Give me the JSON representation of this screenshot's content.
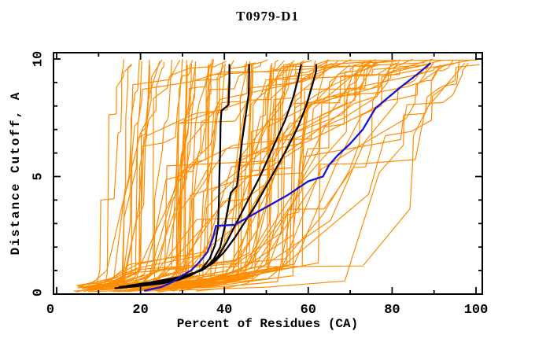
{
  "window": {
    "background": "#ffffff"
  },
  "chart_data": {
    "type": "line",
    "title": "T0979-D1",
    "xlabel": "Percent of Residues (CA)",
    "ylabel": "Distance Cutoff, A",
    "xlim": [
      0,
      100
    ],
    "ylim": [
      0,
      10
    ],
    "x_major_ticks": [
      0,
      20,
      40,
      60,
      80,
      100
    ],
    "x_minor_ticks": [
      10,
      30,
      50,
      70,
      90
    ],
    "y_major_ticks": [
      0,
      5,
      10
    ],
    "y_minor_ticks": [
      1,
      2,
      3,
      4,
      6,
      7,
      8,
      9
    ],
    "grid": false,
    "legend": "none",
    "colors": {
      "frame": "#000000",
      "text": "#000000",
      "ensemble": "#ff8c00",
      "models": "#000000",
      "reference": "#1515d0"
    },
    "series": [
      {
        "name": "model-black-1",
        "color_key": "models",
        "width": 2.2,
        "points": [
          [
            14,
            0.25
          ],
          [
            20,
            0.35
          ],
          [
            25,
            0.45
          ],
          [
            29,
            0.6
          ],
          [
            32,
            0.8
          ],
          [
            34.5,
            1.05
          ],
          [
            36.5,
            1.5
          ],
          [
            37.8,
            2.1
          ],
          [
            38.5,
            2.9
          ],
          [
            38.7,
            4.0
          ],
          [
            38.8,
            5.0
          ],
          [
            39.0,
            6.2
          ],
          [
            39.1,
            7.3
          ],
          [
            39.3,
            7.8
          ],
          [
            41.0,
            8.05
          ],
          [
            41.2,
            9.0
          ],
          [
            41.2,
            9.75
          ]
        ]
      },
      {
        "name": "model-black-2",
        "color_key": "models",
        "width": 2.2,
        "points": [
          [
            15,
            0.3
          ],
          [
            21,
            0.42
          ],
          [
            26,
            0.55
          ],
          [
            30,
            0.72
          ],
          [
            33.5,
            0.95
          ],
          [
            36,
            1.2
          ],
          [
            37.5,
            1.5
          ],
          [
            39,
            2.0
          ],
          [
            40,
            2.8
          ],
          [
            41.5,
            4.3
          ],
          [
            43,
            4.6
          ],
          [
            43.6,
            5.5
          ],
          [
            44.2,
            6.5
          ],
          [
            45,
            7.5
          ],
          [
            45.8,
            8.5
          ],
          [
            45.9,
            9.3
          ],
          [
            45.9,
            9.75
          ]
        ]
      },
      {
        "name": "model-black-3",
        "color_key": "models",
        "width": 2.2,
        "points": [
          [
            16,
            0.3
          ],
          [
            23,
            0.5
          ],
          [
            29,
            0.68
          ],
          [
            33,
            0.9
          ],
          [
            36,
            1.2
          ],
          [
            38.5,
            1.6
          ],
          [
            40.5,
            2.2
          ],
          [
            42.5,
            2.9
          ],
          [
            44.5,
            3.6
          ],
          [
            46.5,
            4.3
          ],
          [
            48.5,
            5.0
          ],
          [
            50.5,
            5.8
          ],
          [
            52.5,
            6.6
          ],
          [
            54.5,
            7.4
          ],
          [
            56.3,
            8.3
          ],
          [
            57.5,
            9.1
          ],
          [
            58.3,
            9.75
          ]
        ]
      },
      {
        "name": "model-black-4",
        "color_key": "models",
        "width": 2.2,
        "points": [
          [
            17,
            0.35
          ],
          [
            24,
            0.55
          ],
          [
            30,
            0.75
          ],
          [
            34.5,
            1.0
          ],
          [
            37.5,
            1.35
          ],
          [
            40,
            1.8
          ],
          [
            42.5,
            2.4
          ],
          [
            45,
            3.1
          ],
          [
            47.5,
            3.8
          ],
          [
            50,
            4.6
          ],
          [
            52.5,
            5.4
          ],
          [
            55,
            6.2
          ],
          [
            57.5,
            7.1
          ],
          [
            59.5,
            8.0
          ],
          [
            61,
            8.9
          ],
          [
            61.9,
            9.5
          ],
          [
            61.9,
            9.75
          ]
        ]
      },
      {
        "name": "model-blue",
        "color_key": "reference",
        "width": 2.3,
        "points": [
          [
            21,
            0.15
          ],
          [
            25,
            0.3
          ],
          [
            28,
            0.55
          ],
          [
            30,
            0.8
          ],
          [
            32,
            1.0
          ],
          [
            34,
            1.35
          ],
          [
            36,
            1.8
          ],
          [
            37.3,
            2.4
          ],
          [
            38,
            2.9
          ],
          [
            42.5,
            2.95
          ],
          [
            46,
            3.3
          ],
          [
            50,
            3.7
          ],
          [
            55,
            4.2
          ],
          [
            60,
            4.8
          ],
          [
            63.5,
            5.0
          ],
          [
            65,
            5.5
          ],
          [
            67,
            5.9
          ],
          [
            70,
            6.4
          ],
          [
            73,
            7.0
          ],
          [
            76,
            7.9
          ],
          [
            78,
            8.2
          ],
          [
            82,
            8.8
          ],
          [
            86,
            9.35
          ],
          [
            89,
            9.8
          ]
        ]
      }
    ],
    "ensemble": {
      "name": "server-model-curves",
      "color_key": "ensemble",
      "count": 90,
      "seed": 42,
      "width": 1.2,
      "x_top_range": [
        17,
        100.5
      ],
      "x_start_range": [
        5,
        35
      ],
      "y_start_range": [
        0.08,
        0.38
      ],
      "y_end_range": [
        9.72,
        10.0
      ]
    }
  }
}
